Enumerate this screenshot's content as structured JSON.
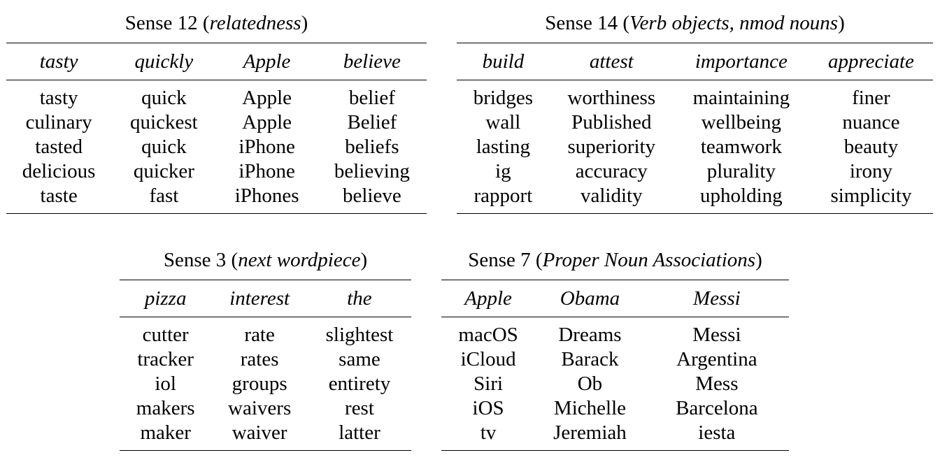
{
  "tables": [
    {
      "id": "sense-12",
      "caption_prefix": "Sense 12 (",
      "caption_italic": "relatedness",
      "caption_suffix": ")",
      "columns": [
        "tasty",
        "quickly",
        "Apple",
        "believe"
      ],
      "rows": [
        [
          "tasty",
          "quick",
          "Apple",
          "belief"
        ],
        [
          "culinary",
          "quickest",
          "Apple",
          "Belief"
        ],
        [
          "tasted",
          "quick",
          "iPhone",
          "beliefs"
        ],
        [
          "delicious",
          "quicker",
          "iPhone",
          "believing"
        ],
        [
          "taste",
          "fast",
          "iPhones",
          "believe"
        ]
      ]
    },
    {
      "id": "sense-14",
      "caption_prefix": "Sense 14 (",
      "caption_italic": "Verb objects, nmod nouns",
      "caption_suffix": ")",
      "columns": [
        "build",
        "attest",
        "importance",
        "appreciate"
      ],
      "rows": [
        [
          "bridges",
          "worthiness",
          "maintaining",
          "finer"
        ],
        [
          "wall",
          "Published",
          "wellbeing",
          "nuance"
        ],
        [
          "lasting",
          "superiority",
          "teamwork",
          "beauty"
        ],
        [
          "ig",
          "accuracy",
          "plurality",
          "irony"
        ],
        [
          "rapport",
          "validity",
          "upholding",
          "simplicity"
        ]
      ]
    },
    {
      "id": "sense-3",
      "caption_prefix": "Sense 3 (",
      "caption_italic": "next wordpiece",
      "caption_suffix": ")",
      "columns": [
        "pizza",
        "interest",
        "the"
      ],
      "rows": [
        [
          "cutter",
          "rate",
          "slightest"
        ],
        [
          "tracker",
          "rates",
          "same"
        ],
        [
          "iol",
          "groups",
          "entirety"
        ],
        [
          "makers",
          "waivers",
          "rest"
        ],
        [
          "maker",
          "waiver",
          "latter"
        ]
      ]
    },
    {
      "id": "sense-7",
      "caption_prefix": "Sense 7 (",
      "caption_italic": "Proper Noun Associations",
      "caption_suffix": ")",
      "columns": [
        "Apple",
        "Obama",
        "Messi"
      ],
      "rows": [
        [
          "macOS",
          "Dreams",
          "Messi"
        ],
        [
          "iCloud",
          "Barack",
          "Argentina"
        ],
        [
          "Siri",
          "Ob",
          "Mess"
        ],
        [
          "iOS",
          "Michelle",
          "Barcelona"
        ],
        [
          "tv",
          "Jeremiah",
          "iesta"
        ]
      ]
    }
  ]
}
